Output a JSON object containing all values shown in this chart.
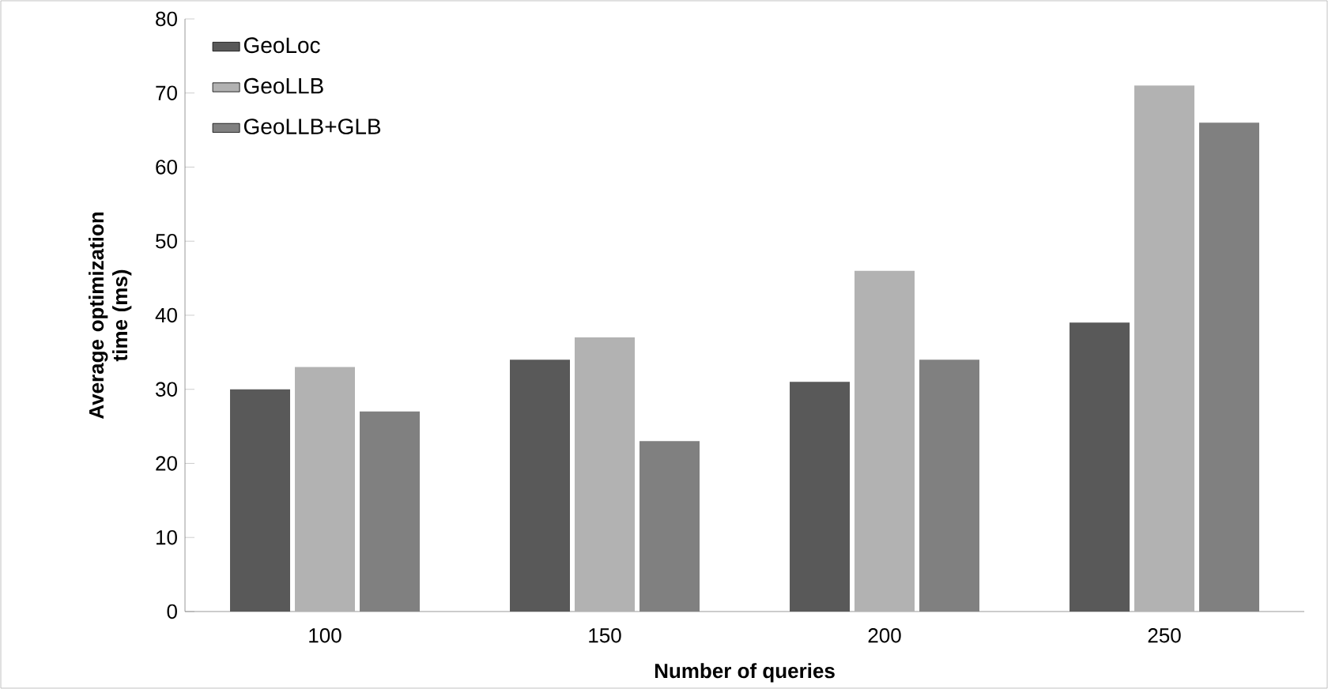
{
  "chart_data": {
    "type": "bar",
    "xlabel": "Number of queries",
    "ylabel": "Average optimization time (ms)",
    "categories": [
      "100",
      "150",
      "200",
      "250"
    ],
    "series": [
      {
        "name": "GeoLoc",
        "color": "#595959",
        "values": [
          30,
          34,
          31,
          39
        ]
      },
      {
        "name": "GeoLLB",
        "color": "#b2b2b2",
        "values": [
          33,
          37,
          46,
          71
        ]
      },
      {
        "name": "GeoLLB+GLB",
        "color": "#808080",
        "values": [
          27,
          23,
          34,
          66
        ]
      }
    ],
    "ylim": [
      0,
      80
    ],
    "yticks": [
      0,
      10,
      20,
      30,
      40,
      50,
      60,
      70,
      80
    ],
    "grid": false,
    "legend": "top left"
  }
}
